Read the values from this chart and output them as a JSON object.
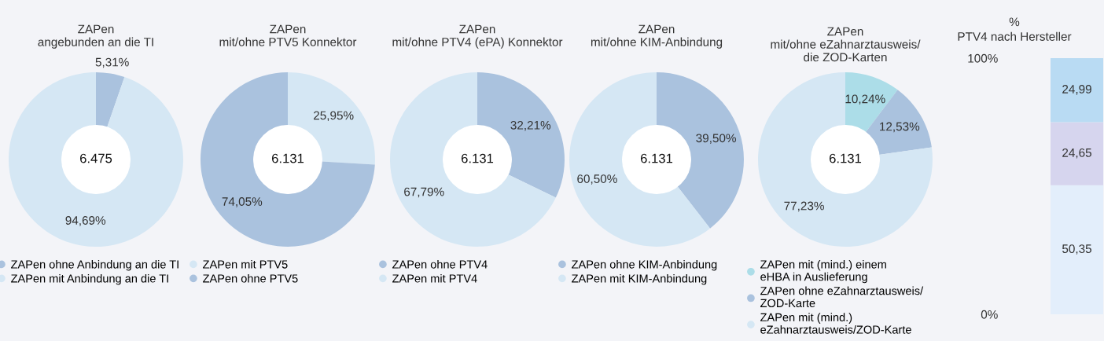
{
  "chart_data": [
    {
      "type": "donut",
      "title": "ZAPen\nangebunden an die TI",
      "categories": [
        "ZAPen ohne Anbindung an die TI",
        "ZAPen mit Anbindung an die TI"
      ],
      "values": [
        5.31,
        94.69
      ],
      "colors": [
        "#aac2de",
        "#d5e7f4"
      ],
      "value_labels": [
        "5,31%",
        "94,69%"
      ],
      "annotations": [
        "6.475"
      ],
      "legend": "bottom"
    },
    {
      "type": "donut",
      "title": "ZAPen\nmit/ohne PTV5 Konnektor",
      "categories": [
        "ZAPen mit PTV5",
        "ZAPen ohne PTV5"
      ],
      "values": [
        25.95,
        74.05
      ],
      "colors": [
        "#d5e7f4",
        "#aac2de"
      ],
      "value_labels": [
        "25,95%",
        "74,05%"
      ],
      "annotations": [
        "6.131"
      ],
      "legend": "bottom"
    },
    {
      "type": "donut",
      "title": "ZAPen\nmit/ohne PTV4 (ePA) Konnektor",
      "categories": [
        "ZAPen ohne PTV4",
        "ZAPen mit PTV4"
      ],
      "values": [
        32.21,
        67.79
      ],
      "colors": [
        "#aac2de",
        "#d5e7f4"
      ],
      "value_labels": [
        "32,21%",
        "67,79%"
      ],
      "annotations": [
        "6.131"
      ],
      "legend": "bottom"
    },
    {
      "type": "donut",
      "title": "ZAPen\nmit/ohne KIM-Anbindung",
      "categories": [
        "ZAPen ohne KIM-Anbindung",
        "ZAPen mit KIM-Anbindung"
      ],
      "values": [
        39.5,
        60.5
      ],
      "colors": [
        "#aac2de",
        "#d5e7f4"
      ],
      "value_labels": [
        "39,50%",
        "60,50%"
      ],
      "annotations": [
        "6.131"
      ],
      "legend": "bottom"
    },
    {
      "type": "donut",
      "title": "ZAPen\nmit/ohne eZahnarztausweis/\ndie ZOD-Karten",
      "categories": [
        "ZAPen mit (mind.) einem\neHBA in Auslieferung",
        "ZAPen ohne eZahnarztausweis/\nZOD-Karte",
        "ZAPen mit (mind.)\neZahnarztausweis/ZOD-Karte"
      ],
      "values": [
        10.24,
        12.53,
        77.23
      ],
      "colors": [
        "#acdde8",
        "#aac2de",
        "#d5e7f4"
      ],
      "value_labels": [
        "10,24%",
        "12,53%",
        "77,23%"
      ],
      "annotations": [
        "6.131"
      ],
      "legend": "bottom"
    },
    {
      "type": "bar",
      "stacked": true,
      "title": "%\nPTV4 nach Hersteller",
      "categories": [
        null
      ],
      "series": [
        {
          "color": "#e3eefb",
          "values": [
            50.35
          ],
          "value_labels": [
            "50,35"
          ]
        },
        {
          "color": "#d6d5ee",
          "values": [
            24.65
          ],
          "value_labels": [
            "24,65"
          ]
        },
        {
          "color": "#b9dbf3",
          "values": [
            24.99
          ],
          "value_labels": [
            "24,99"
          ]
        }
      ],
      "ylim": [
        0,
        100
      ],
      "yticks": [
        {
          "value": 0,
          "label": "0%"
        },
        {
          "value": 100,
          "label": "100%"
        }
      ],
      "tick_labels": "y"
    }
  ]
}
